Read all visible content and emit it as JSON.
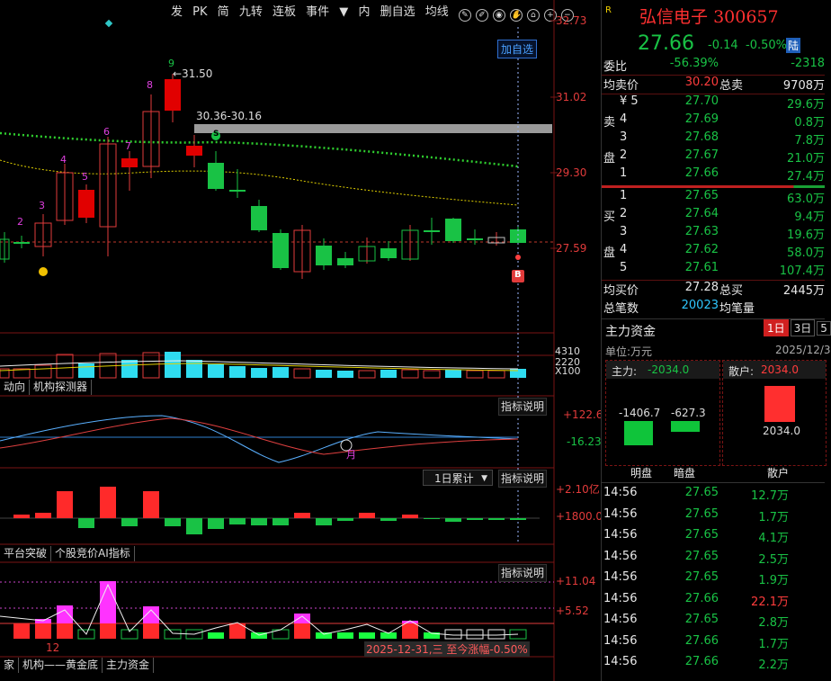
{
  "toolbar": {
    "items": [
      "发",
      "PK",
      "简",
      "九转",
      "连板",
      "事件",
      "内",
      "删自选",
      "均线"
    ]
  },
  "main_chart": {
    "price_axis": [
      "32.73",
      "31.02",
      "29.30",
      "27.59"
    ],
    "add_watch": "加自选",
    "high_marker": "←31.50",
    "range_label": "30.36-30.16",
    "tick_numbers": [
      "2",
      "3",
      "4",
      "5",
      "6",
      "7",
      "8",
      "9"
    ],
    "badge_s": "S",
    "badge_b": "B"
  },
  "volume": {
    "labels": [
      "4310",
      "2220",
      "X100"
    ]
  },
  "tabs1": [
    "动向",
    "机构探测器"
  ],
  "indicator1": {
    "note": "指标说明",
    "axis": [
      "+122.6",
      "-16.23"
    ],
    "marker": "月"
  },
  "indicator2": {
    "select": "1日累计",
    "note": "指标说明",
    "axis": [
      "+2.10亿",
      "+1800.02"
    ]
  },
  "tabs2": [
    "平台突破",
    "个股竞价AI指标"
  ],
  "indicator3": {
    "note": "指标说明",
    "axis": [
      "+11.04",
      "+5.52"
    ],
    "bottom_label": "12",
    "date_info": "2025-12-31,三 至今涨幅-0.50%"
  },
  "tabs3": [
    "家",
    "机构——黄金底",
    "主力资金"
  ],
  "quote": {
    "name": "弘信电子",
    "code": "300657",
    "price": "27.66",
    "change": "-0.14",
    "pct": "-0.50%",
    "lu": "陆",
    "weibi_label": "委比",
    "weibi_pct": "-56.39%",
    "weibi_val": "-2318",
    "avg_sell_label": "均卖价",
    "avg_sell": "30.20",
    "total_sell_label": "总卖",
    "total_sell": "9708万",
    "sells": [
      {
        "label": "¥ 5",
        "side": "",
        "price": "27.70",
        "vol": "29.6万"
      },
      {
        "label": "4",
        "side": "卖",
        "price": "27.69",
        "vol": "0.8万"
      },
      {
        "label": "3",
        "side": "",
        "price": "27.68",
        "vol": "7.8万"
      },
      {
        "label": "2",
        "side": "盘",
        "price": "27.67",
        "vol": "21.0万"
      },
      {
        "label": "1",
        "side": "",
        "price": "27.66",
        "vol": "27.4万"
      }
    ],
    "buys": [
      {
        "label": "1",
        "side": "",
        "price": "27.65",
        "vol": "63.0万"
      },
      {
        "label": "2",
        "side": "买",
        "price": "27.64",
        "vol": "9.4万"
      },
      {
        "label": "3",
        "side": "",
        "price": "27.63",
        "vol": "19.6万"
      },
      {
        "label": "4",
        "side": "盘",
        "price": "27.62",
        "vol": "58.0万"
      },
      {
        "label": "5",
        "side": "",
        "price": "27.61",
        "vol": "107.4万"
      }
    ],
    "avg_buy_label": "均买价",
    "avg_buy": "27.28",
    "total_buy_label": "总买",
    "total_buy": "2445万",
    "total_count_label": "总笔数",
    "total_count": "20023",
    "avg_vol_label": "均笔量"
  },
  "fund": {
    "title": "主力资金",
    "periods": [
      "1日",
      "3日",
      "5"
    ],
    "unit": "单位:万元",
    "date": "2025/12/3",
    "main_label": "主力:",
    "main_val": "-2034.0",
    "retail_label": "散户:",
    "retail_val": "2034.0",
    "ming_val": "-1406.7",
    "an_val": "-627.3",
    "retail_bar_val": "2034.0",
    "cat_ming": "明盘",
    "cat_an": "暗盘",
    "cat_retail": "散户"
  },
  "ticks": [
    {
      "time": "14:56",
      "price": "27.65",
      "vol": "12.7万",
      "color": "green"
    },
    {
      "time": "14:56",
      "price": "27.65",
      "vol": "1.7万",
      "color": "green"
    },
    {
      "time": "14:56",
      "price": "27.65",
      "vol": "4.1万",
      "color": "green"
    },
    {
      "time": "14:56",
      "price": "27.65",
      "vol": "2.5万",
      "color": "green"
    },
    {
      "time": "14:56",
      "price": "27.65",
      "vol": "1.9万",
      "color": "green"
    },
    {
      "time": "14:56",
      "price": "27.66",
      "vol": "22.1万",
      "color": "red"
    },
    {
      "time": "14:56",
      "price": "27.65",
      "vol": "2.8万",
      "color": "green"
    },
    {
      "time": "14:56",
      "price": "27.66",
      "vol": "1.7万",
      "color": "green"
    },
    {
      "time": "14:56",
      "price": "27.66",
      "vol": "2.2万",
      "color": "green"
    }
  ]
}
